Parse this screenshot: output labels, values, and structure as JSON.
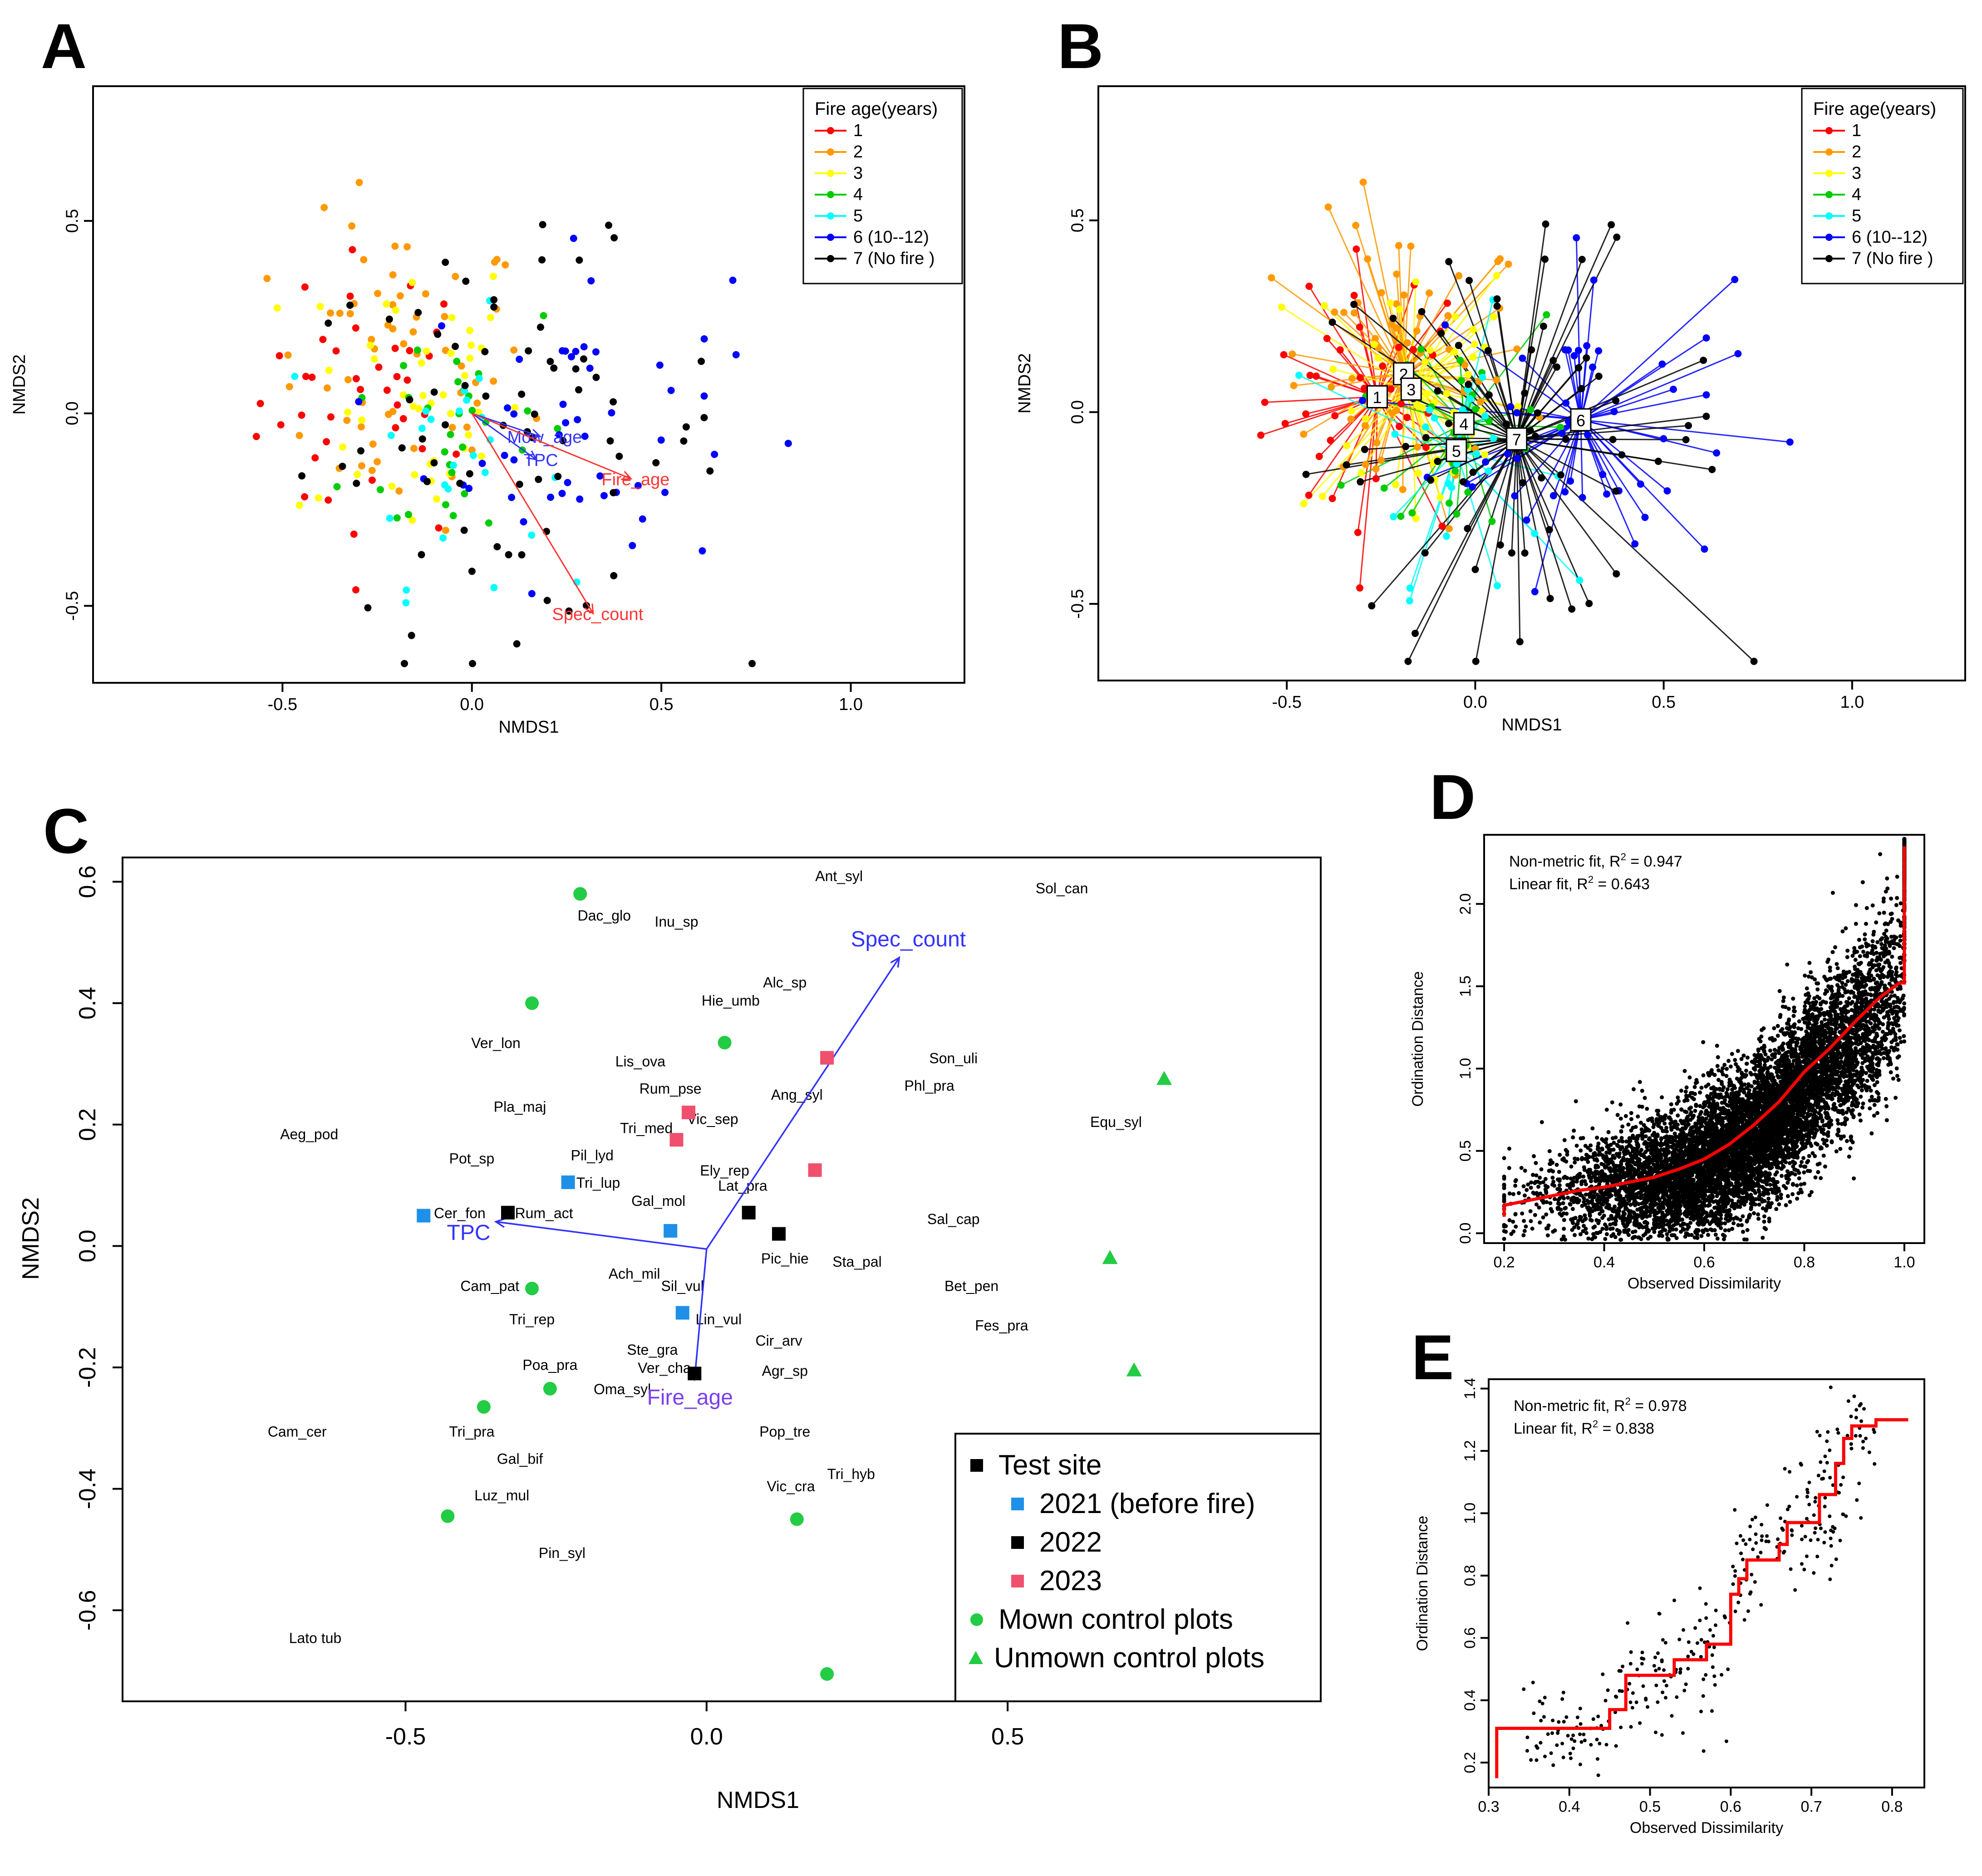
{
  "colors": {
    "fire": [
      "#ff0000",
      "#ff9900",
      "#ffff00",
      "#00cc00",
      "#00ffff",
      "#0000ff",
      "#000000"
    ],
    "vector_red": "#ff3333",
    "vector_blue": "#3333ff",
    "fit_line": "#ff0000",
    "test_2021": "#1e90e8",
    "test_2022": "#000000",
    "test_2023": "#f0506e",
    "control": "#22cc44"
  },
  "panel_labels": [
    "A",
    "B",
    "C",
    "D",
    "E"
  ],
  "chart_data": [
    {
      "panel": "A",
      "type": "scatter",
      "xlabel": "NMDS1",
      "ylabel": "NMDS2",
      "xlim": [
        -1.0,
        1.3
      ],
      "ylim": [
        -0.7,
        0.85
      ],
      "xticks": [
        "-0.5",
        "0.0",
        "0.5",
        "1.0"
      ],
      "yticks": [
        "-0.5",
        "0.0",
        "0.5"
      ],
      "legend": {
        "title": "Fire age(years)",
        "position": "top-right",
        "entries": [
          "1",
          "2",
          "3",
          "4",
          "5",
          "6    (10--12)",
          "7    (No fire )"
        ]
      },
      "points_per_group_approx": [
        40,
        60,
        45,
        30,
        25,
        50,
        75
      ],
      "vectors": [
        {
          "label": "Mow_age",
          "x": 0.18,
          "y": -0.06,
          "color": "blue"
        },
        {
          "label": "TPC",
          "x": 0.17,
          "y": -0.12,
          "color": "blue"
        },
        {
          "label": "Fire_age",
          "x": 0.42,
          "y": -0.17,
          "color": "red"
        },
        {
          "label": "Spec_count",
          "x": 0.32,
          "y": -0.52,
          "color": "red"
        }
      ]
    },
    {
      "panel": "B",
      "type": "scatter",
      "xlabel": "NMDS1",
      "ylabel": "NMDS2",
      "xlim": [
        -1.0,
        1.3
      ],
      "ylim": [
        -0.7,
        0.85
      ],
      "xticks": [
        "-0.5",
        "0.0",
        "0.5",
        "1.0"
      ],
      "yticks": [
        "-0.5",
        "0.0",
        "0.5"
      ],
      "legend": {
        "title": "Fire age(years)",
        "position": "top-right",
        "entries": [
          "1",
          "2",
          "3",
          "4",
          "5",
          "6    (10--12)",
          "7    (No fire )"
        ]
      },
      "centroids": [
        {
          "group": "1",
          "x": -0.26,
          "y": 0.04
        },
        {
          "group": "2",
          "x": -0.19,
          "y": 0.1
        },
        {
          "group": "3",
          "x": -0.17,
          "y": 0.06
        },
        {
          "group": "4",
          "x": -0.03,
          "y": -0.03
        },
        {
          "group": "5",
          "x": -0.05,
          "y": -0.1
        },
        {
          "group": "6",
          "x": 0.28,
          "y": -0.02
        },
        {
          "group": "7",
          "x": 0.11,
          "y": -0.07
        }
      ]
    },
    {
      "panel": "C",
      "type": "scatter",
      "xlabel": "NMDS1",
      "ylabel": "NMDS2",
      "xlim": [
        -0.97,
        1.02
      ],
      "ylim": [
        -0.75,
        0.64
      ],
      "xticks": [
        "-0.5",
        "0.0",
        "0.5"
      ],
      "yticks": [
        "0.6",
        "0.4",
        "0.2",
        "0.0",
        "-0.2",
        "-0.4",
        "-0.6"
      ],
      "species": [
        {
          "t": "Ant_syl",
          "x": 0.22,
          "y": 0.61
        },
        {
          "t": "Sol_can",
          "x": 0.59,
          "y": 0.59
        },
        {
          "t": "Dac_glo",
          "x": -0.17,
          "y": 0.545
        },
        {
          "t": "Inu_sp",
          "x": -0.05,
          "y": 0.535
        },
        {
          "t": "Alc_sp",
          "x": 0.13,
          "y": 0.435
        },
        {
          "t": "Hie_umb",
          "x": 0.04,
          "y": 0.405
        },
        {
          "t": "Ver_lon",
          "x": -0.35,
          "y": 0.335
        },
        {
          "t": "Lis_ova",
          "x": -0.11,
          "y": 0.305
        },
        {
          "t": "Son_uli",
          "x": 0.41,
          "y": 0.31
        },
        {
          "t": "Rum_pse",
          "x": -0.06,
          "y": 0.26
        },
        {
          "t": "Phl_pra",
          "x": 0.37,
          "y": 0.265
        },
        {
          "t": "Ang_syl",
          "x": 0.15,
          "y": 0.25
        },
        {
          "t": "Pla_maj",
          "x": -0.31,
          "y": 0.23
        },
        {
          "t": "Vic_sep",
          "x": 0.01,
          "y": 0.21
        },
        {
          "t": "Equ_syl",
          "x": 0.68,
          "y": 0.205
        },
        {
          "t": "Tri_med",
          "x": -0.1,
          "y": 0.195
        },
        {
          "t": "Aeg_pod",
          "x": -0.66,
          "y": 0.185
        },
        {
          "t": "Pil_lyd",
          "x": -0.19,
          "y": 0.15
        },
        {
          "t": "Pot_sp",
          "x": -0.39,
          "y": 0.145
        },
        {
          "t": "Ely_rep",
          "x": 0.03,
          "y": 0.125
        },
        {
          "t": "Tri_lup",
          "x": -0.18,
          "y": 0.105
        },
        {
          "t": "Lat_pra",
          "x": 0.06,
          "y": 0.1
        },
        {
          "t": "Gal_mol",
          "x": -0.08,
          "y": 0.075
        },
        {
          "t": "Cer_fon",
          "x": -0.41,
          "y": 0.055
        },
        {
          "t": "Rum_act",
          "x": -0.27,
          "y": 0.055
        },
        {
          "t": "Sal_cap",
          "x": 0.41,
          "y": 0.045
        },
        {
          "t": "Pic_hie",
          "x": 0.13,
          "y": -0.02
        },
        {
          "t": "Sta_pal",
          "x": 0.25,
          "y": -0.025
        },
        {
          "t": "Ach_mil",
          "x": -0.12,
          "y": -0.045
        },
        {
          "t": "Sil_vul",
          "x": -0.04,
          "y": -0.065
        },
        {
          "t": "Cam_pat",
          "x": -0.36,
          "y": -0.065
        },
        {
          "t": "Bet_pen",
          "x": 0.44,
          "y": -0.065
        },
        {
          "t": "Lin_vul",
          "x": 0.02,
          "y": -0.12
        },
        {
          "t": "Tri_rep",
          "x": -0.29,
          "y": -0.12
        },
        {
          "t": "Fes_pra",
          "x": 0.49,
          "y": -0.13
        },
        {
          "t": "Cir_arv",
          "x": 0.12,
          "y": -0.155
        },
        {
          "t": "Ste_gra",
          "x": -0.09,
          "y": -0.17
        },
        {
          "t": "Poa_pra",
          "x": -0.26,
          "y": -0.195
        },
        {
          "t": "Ver_cha",
          "x": -0.07,
          "y": -0.2
        },
        {
          "t": "Agr_sp",
          "x": 0.13,
          "y": -0.205
        },
        {
          "t": "Oma_syl",
          "x": -0.14,
          "y": -0.235
        },
        {
          "t": "Cam_cer",
          "x": -0.68,
          "y": -0.305
        },
        {
          "t": "Tri_pra",
          "x": -0.39,
          "y": -0.305
        },
        {
          "t": "Pop_tre",
          "x": 0.13,
          "y": -0.305
        },
        {
          "t": "Gal_bif",
          "x": -0.31,
          "y": -0.35
        },
        {
          "t": "Tri_hyb",
          "x": 0.24,
          "y": -0.375
        },
        {
          "t": "Vic_cra",
          "x": 0.14,
          "y": -0.395
        },
        {
          "t": "Luz_mul",
          "x": -0.34,
          "y": -0.41
        },
        {
          "t": "Pin_syl",
          "x": -0.24,
          "y": -0.505
        },
        {
          "t": "Lato tub",
          "x": -0.65,
          "y": -0.645
        }
      ],
      "vectors": [
        {
          "label": "Spec_count",
          "x": 0.32,
          "y": 0.475
        },
        {
          "label": "TPC",
          "x": -0.35,
          "y": 0.04
        },
        {
          "label": "Fire_age",
          "x": -0.02,
          "y": -0.22
        }
      ],
      "groups": [
        {
          "name": "2021 (before fire)",
          "marker": "square",
          "points": [
            [
              -0.47,
              0.05
            ],
            [
              -0.23,
              0.105
            ],
            [
              -0.06,
              0.025
            ],
            [
              -0.04,
              -0.11
            ]
          ]
        },
        {
          "name": "2022",
          "marker": "square",
          "points": [
            [
              -0.33,
              0.055
            ],
            [
              0.07,
              0.055
            ],
            [
              0.12,
              0.02
            ],
            [
              -0.02,
              -0.21
            ]
          ]
        },
        {
          "name": "2023",
          "marker": "square",
          "points": [
            [
              0.2,
              0.31
            ],
            [
              -0.03,
              0.22
            ],
            [
              -0.05,
              0.175
            ],
            [
              0.18,
              0.125
            ]
          ]
        },
        {
          "name": "Mown control plots",
          "marker": "circle",
          "points": [
            [
              -0.21,
              0.58
            ],
            [
              -0.29,
              0.4
            ],
            [
              0.03,
              0.335
            ],
            [
              -0.29,
              -0.07
            ],
            [
              -0.26,
              -0.235
            ],
            [
              -0.37,
              -0.265
            ],
            [
              -0.43,
              -0.445
            ],
            [
              0.15,
              -0.45
            ],
            [
              0.2,
              -0.705
            ]
          ]
        },
        {
          "name": "Unmown control plots",
          "marker": "triangle",
          "points": [
            [
              0.76,
              0.275
            ],
            [
              0.67,
              -0.02
            ],
            [
              0.71,
              -0.205
            ]
          ]
        }
      ],
      "legend": {
        "position": "bottom-right",
        "entries": [
          "Test site",
          "2021 (before fire)",
          "2022",
          "2023",
          "Mown control plots",
          "Unmown control plots"
        ]
      }
    },
    {
      "panel": "D",
      "type": "scatter",
      "xlabel": "Observed Dissimilarity",
      "ylabel": "Ordination Distance",
      "xlim": [
        0.16,
        1.04
      ],
      "ylim": [
        -0.06,
        2.42
      ],
      "xticks": [
        "0.2",
        "0.4",
        "0.6",
        "0.8",
        "1.0"
      ],
      "yticks": [
        "0.0",
        "0.5",
        "1.0",
        "1.5",
        "2.0"
      ],
      "annotations": [
        "Non-metric fit, R",
        "2",
        " = 0.947",
        "Linear fit, R",
        "2",
        " = 0.643"
      ],
      "fit_step": [
        [
          0.2,
          0.1
        ],
        [
          0.2,
          0.17
        ],
        [
          0.25,
          0.2
        ],
        [
          0.3,
          0.23
        ],
        [
          0.35,
          0.26
        ],
        [
          0.4,
          0.28
        ],
        [
          0.45,
          0.31
        ],
        [
          0.5,
          0.34
        ],
        [
          0.55,
          0.39
        ],
        [
          0.6,
          0.45
        ],
        [
          0.65,
          0.54
        ],
        [
          0.7,
          0.66
        ],
        [
          0.75,
          0.8
        ],
        [
          0.8,
          0.98
        ],
        [
          0.85,
          1.12
        ],
        [
          0.9,
          1.28
        ],
        [
          0.95,
          1.43
        ],
        [
          0.99,
          1.52
        ],
        [
          1.0,
          1.52
        ],
        [
          1.0,
          2.35
        ]
      ]
    },
    {
      "panel": "E",
      "type": "scatter",
      "xlabel": "Observed Dissimilarity",
      "ylabel": "Ordination Distance",
      "xlim": [
        0.3,
        0.84
      ],
      "ylim": [
        0.12,
        1.43
      ],
      "xticks": [
        "0.3",
        "0.4",
        "0.5",
        "0.6",
        "0.7",
        "0.8"
      ],
      "yticks": [
        "0.2",
        "0.4",
        "0.6",
        "0.8",
        "1.0",
        "1.2",
        "1.4"
      ],
      "annotations": [
        "Non-metric fit, R",
        "2",
        " = 0.978",
        "Linear fit, R",
        "2",
        " = 0.838"
      ],
      "fit_step": [
        [
          0.31,
          0.15
        ],
        [
          0.31,
          0.31
        ],
        [
          0.45,
          0.31
        ],
        [
          0.45,
          0.37
        ],
        [
          0.47,
          0.37
        ],
        [
          0.47,
          0.48
        ],
        [
          0.53,
          0.48
        ],
        [
          0.53,
          0.53
        ],
        [
          0.57,
          0.53
        ],
        [
          0.57,
          0.58
        ],
        [
          0.6,
          0.58
        ],
        [
          0.6,
          0.74
        ],
        [
          0.61,
          0.74
        ],
        [
          0.61,
          0.79
        ],
        [
          0.62,
          0.79
        ],
        [
          0.62,
          0.85
        ],
        [
          0.66,
          0.85
        ],
        [
          0.66,
          0.9
        ],
        [
          0.67,
          0.9
        ],
        [
          0.67,
          0.97
        ],
        [
          0.71,
          0.97
        ],
        [
          0.71,
          1.06
        ],
        [
          0.73,
          1.06
        ],
        [
          0.73,
          1.16
        ],
        [
          0.74,
          1.16
        ],
        [
          0.74,
          1.24
        ],
        [
          0.75,
          1.24
        ],
        [
          0.75,
          1.28
        ],
        [
          0.78,
          1.28
        ],
        [
          0.78,
          1.3
        ],
        [
          0.82,
          1.3
        ]
      ]
    }
  ]
}
